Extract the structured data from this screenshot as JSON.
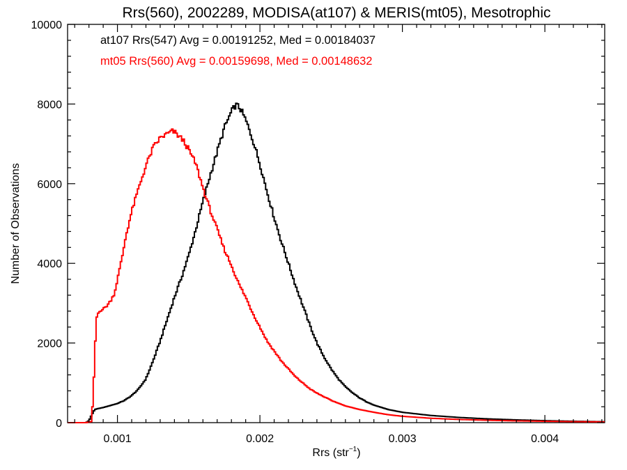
{
  "chart_data": {
    "type": "histogram-step",
    "title": "Rrs(560), 2002289, MODISA(at107) & MERIS(mt05), Mesotrophic",
    "xlabel_base": "Rrs (str",
    "xlabel_sup": "−1",
    "xlabel_end": ")",
    "ylabel": "Number of Observations",
    "xlim": [
      0.00065,
      0.00442
    ],
    "ylim": [
      0,
      10000
    ],
    "xticks": [
      0.001,
      0.002,
      0.003,
      0.004
    ],
    "xtick_labels": [
      "0.001",
      "0.002",
      "0.003",
      "0.004"
    ],
    "yticks": [
      0,
      2000,
      4000,
      6000,
      8000,
      10000
    ],
    "ytick_labels": [
      "0",
      "2000",
      "4000",
      "6000",
      "8000",
      "10000"
    ],
    "grid": false,
    "legend_placement": "top-left",
    "series": [
      {
        "name": "at107 Rrs(547) Avg = 0.00191252, Med = 0.00184037",
        "color": "#000000",
        "points": [
          [
            0.00078,
            0
          ],
          [
            0.0008,
            50
          ],
          [
            0.00082,
            200
          ],
          [
            0.00084,
            330
          ],
          [
            0.00086,
            350
          ],
          [
            0.0009,
            380
          ],
          [
            0.00095,
            430
          ],
          [
            0.001,
            480
          ],
          [
            0.00105,
            560
          ],
          [
            0.0011,
            680
          ],
          [
            0.00115,
            850
          ],
          [
            0.0012,
            1100
          ],
          [
            0.00125,
            1550
          ],
          [
            0.0013,
            2050
          ],
          [
            0.00135,
            2600
          ],
          [
            0.0014,
            3150
          ],
          [
            0.00145,
            3650
          ],
          [
            0.0015,
            4200
          ],
          [
            0.00155,
            4850
          ],
          [
            0.0016,
            5550
          ],
          [
            0.00165,
            6200
          ],
          [
            0.0017,
            6800
          ],
          [
            0.00175,
            7400
          ],
          [
            0.0018,
            7800
          ],
          [
            0.00183,
            7980
          ],
          [
            0.00186,
            7900
          ],
          [
            0.0019,
            7600
          ],
          [
            0.00195,
            7100
          ],
          [
            0.002,
            6500
          ],
          [
            0.00205,
            5800
          ],
          [
            0.0021,
            5150
          ],
          [
            0.00215,
            4550
          ],
          [
            0.0022,
            4000
          ],
          [
            0.00225,
            3450
          ],
          [
            0.0023,
            2950
          ],
          [
            0.00235,
            2450
          ],
          [
            0.0024,
            2000
          ],
          [
            0.00245,
            1650
          ],
          [
            0.0025,
            1350
          ],
          [
            0.00255,
            1100
          ],
          [
            0.0026,
            900
          ],
          [
            0.00265,
            750
          ],
          [
            0.0027,
            620
          ],
          [
            0.00275,
            520
          ],
          [
            0.0028,
            440
          ],
          [
            0.0029,
            330
          ],
          [
            0.003,
            260
          ],
          [
            0.0032,
            180
          ],
          [
            0.0034,
            130
          ],
          [
            0.0036,
            95
          ],
          [
            0.0038,
            70
          ],
          [
            0.004,
            50
          ],
          [
            0.0042,
            35
          ],
          [
            0.0044,
            25
          ]
        ]
      },
      {
        "name": "mt05 Rrs(560) Avg = 0.00159698, Med = 0.00148632",
        "color": "#ff0000",
        "points": [
          [
            0.00078,
            0
          ],
          [
            0.00082,
            30
          ],
          [
            0.00084,
            1500
          ],
          [
            0.00085,
            2600
          ],
          [
            0.00087,
            2800
          ],
          [
            0.0009,
            2850
          ],
          [
            0.00093,
            2950
          ],
          [
            0.00095,
            3050
          ],
          [
            0.00098,
            3250
          ],
          [
            0.001,
            3600
          ],
          [
            0.00103,
            4100
          ],
          [
            0.00106,
            4700
          ],
          [
            0.0011,
            5300
          ],
          [
            0.00115,
            5900
          ],
          [
            0.0012,
            6450
          ],
          [
            0.00125,
            6900
          ],
          [
            0.0013,
            7150
          ],
          [
            0.00135,
            7250
          ],
          [
            0.00139,
            7320
          ],
          [
            0.00143,
            7200
          ],
          [
            0.00147,
            7050
          ],
          [
            0.0015,
            6850
          ],
          [
            0.00155,
            6500
          ],
          [
            0.0016,
            5900
          ],
          [
            0.00165,
            5350
          ],
          [
            0.0017,
            4850
          ],
          [
            0.00175,
            4350
          ],
          [
            0.0018,
            3950
          ],
          [
            0.00185,
            3500
          ],
          [
            0.0019,
            3150
          ],
          [
            0.00195,
            2750
          ],
          [
            0.002,
            2400
          ],
          [
            0.00205,
            2050
          ],
          [
            0.0021,
            1800
          ],
          [
            0.00215,
            1550
          ],
          [
            0.0022,
            1350
          ],
          [
            0.00225,
            1150
          ],
          [
            0.0023,
            1000
          ],
          [
            0.00235,
            850
          ],
          [
            0.0024,
            740
          ],
          [
            0.00245,
            650
          ],
          [
            0.0025,
            560
          ],
          [
            0.0026,
            420
          ],
          [
            0.0027,
            330
          ],
          [
            0.0028,
            260
          ],
          [
            0.0029,
            200
          ],
          [
            0.003,
            160
          ],
          [
            0.0032,
            110
          ],
          [
            0.0034,
            80
          ],
          [
            0.0036,
            60
          ],
          [
            0.0038,
            45
          ],
          [
            0.004,
            35
          ],
          [
            0.0042,
            25
          ],
          [
            0.0044,
            20
          ]
        ]
      }
    ]
  }
}
